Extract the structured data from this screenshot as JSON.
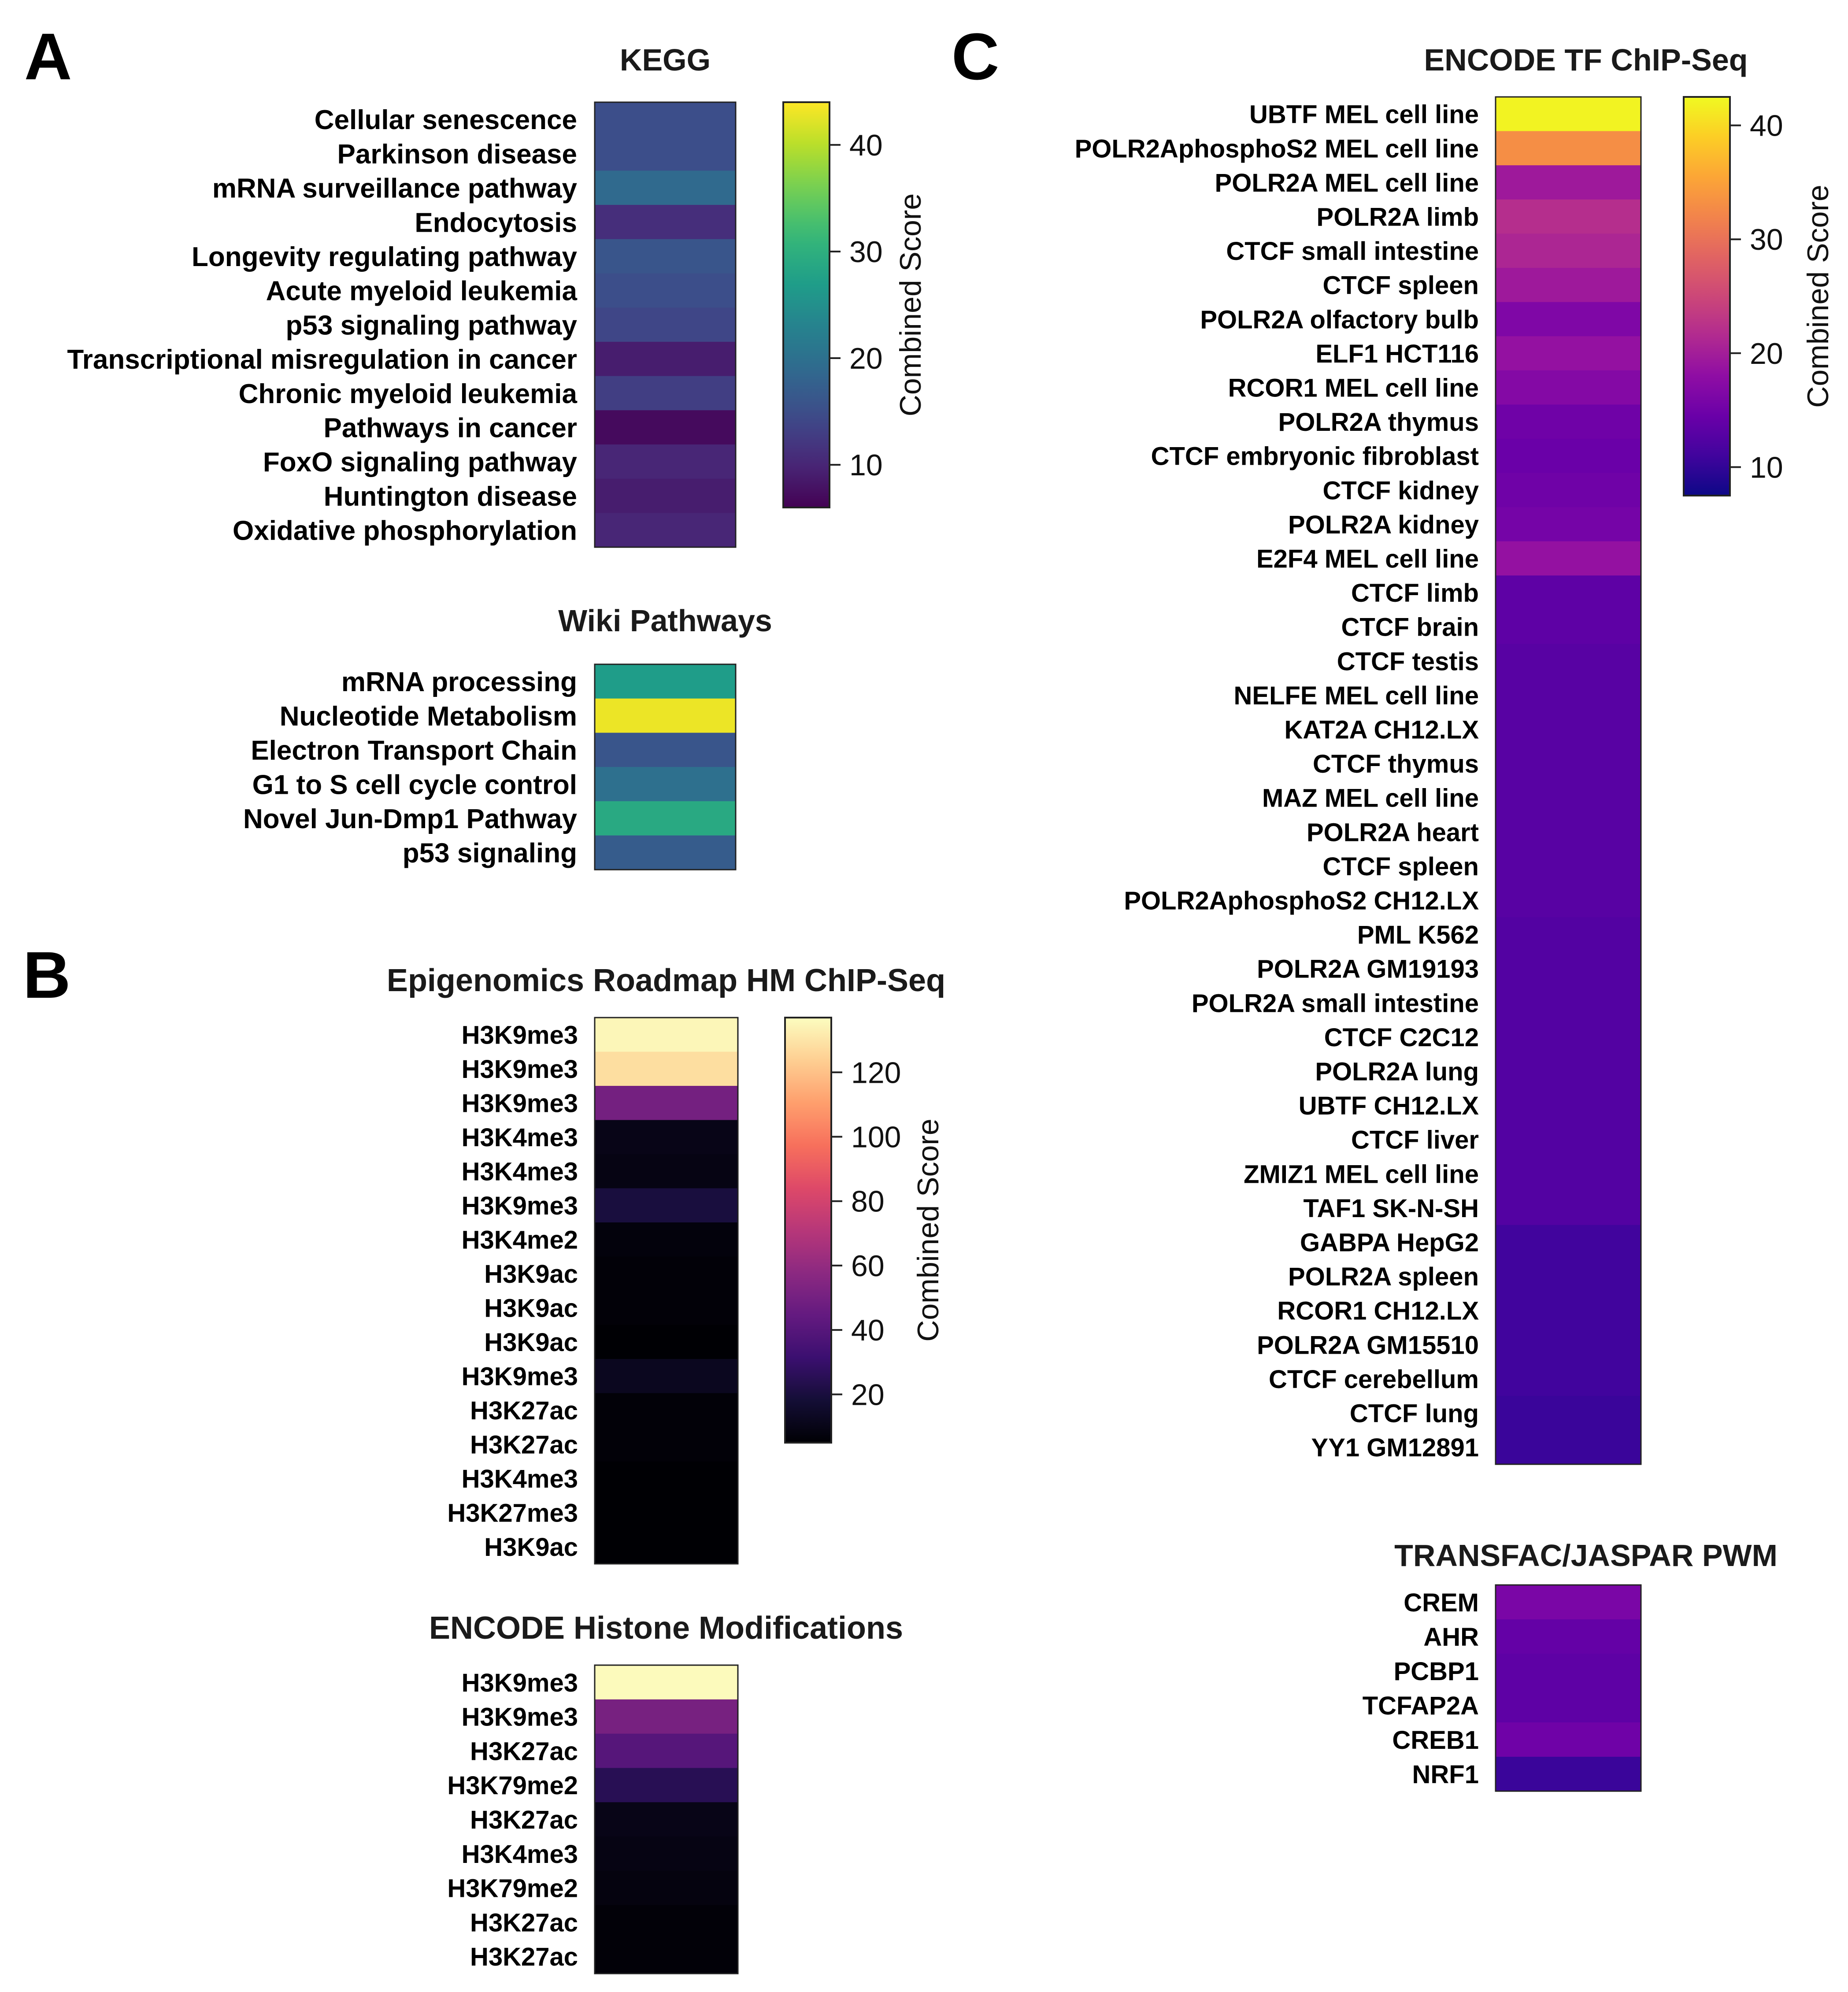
{
  "panel_labels": [
    "A",
    "B",
    "C"
  ],
  "chart_data": [
    {
      "type": "heatmap",
      "title": "KEGG",
      "colormap": "viridis",
      "colorbar": {
        "label": "Combined Score",
        "range": [
          6,
          44
        ],
        "ticks": [
          10,
          20,
          30,
          40
        ]
      },
      "categories": [
        "Cellular senescence",
        "Parkinson disease",
        "mRNA surveillance pathway",
        "Endocytosis",
        "Longevity regulating pathway",
        "Acute myeloid leukemia",
        "p53 signaling pathway",
        "Transcriptional misregulation in cancer",
        "Chronic myeloid leukemia",
        "Pathways in cancer",
        "FoxO signaling pathway",
        "Huntington disease",
        "Oxidative phosphorylation"
      ],
      "values": [
        15,
        15,
        19,
        11,
        16,
        15,
        14,
        9,
        13,
        7,
        10,
        9,
        10
      ]
    },
    {
      "type": "heatmap",
      "title": "Wiki Pathways",
      "colormap": "viridis",
      "colorbar_shared_with": "KEGG",
      "range": [
        6,
        44
      ],
      "categories": [
        "mRNA processing",
        "Nucleotide Metabolism",
        "Electron Transport Chain",
        "G1 to S cell cycle control",
        "Novel Jun-Dmp1 Pathway",
        "p53 signaling"
      ],
      "values": [
        27,
        43,
        16,
        20,
        29,
        17
      ]
    },
    {
      "type": "heatmap",
      "title": "Epigenomics Roadmap HM ChIP-Seq",
      "colormap": "magma",
      "colorbar": {
        "label": "Combined Score",
        "range": [
          5,
          137
        ],
        "ticks": [
          20,
          40,
          60,
          80,
          100,
          120
        ]
      },
      "categories": [
        "H3K9me3",
        "H3K9me3",
        "H3K9me3",
        "H3K4me3",
        "H3K4me3",
        "H3K9me3",
        "H3K4me2",
        "H3K9ac",
        "H3K9ac",
        "H3K9ac",
        "H3K9me3",
        "H3K27ac",
        "H3K27ac",
        "H3K4me3",
        "H3K27me3",
        "H3K9ac"
      ],
      "values": [
        135,
        128,
        50,
        10,
        9,
        20,
        7,
        6,
        6,
        5,
        12,
        6,
        6,
        5,
        5,
        5
      ]
    },
    {
      "type": "heatmap",
      "title": "ENCODE Histone Modifications",
      "colormap": "magma",
      "colorbar_shared_with": "Epigenomics Roadmap HM ChIP-Seq",
      "range": [
        5,
        137
      ],
      "categories": [
        "H3K9me3",
        "H3K9me3",
        "H3K27ac",
        "H3K79me2",
        "H3K27ac",
        "H3K4me3",
        "H3K79me2",
        "H3K27ac",
        "H3K27ac"
      ],
      "values": [
        136,
        51,
        40,
        25,
        10,
        9,
        8,
        6,
        6
      ]
    },
    {
      "type": "heatmap",
      "title": "ENCODE TF ChIP-Seq",
      "colormap": "plasma",
      "colorbar": {
        "label": "Combined Score",
        "range": [
          7.5,
          42.5
        ],
        "ticks": [
          10,
          20,
          30,
          40
        ]
      },
      "categories": [
        "UBTF MEL cell line",
        "POLR2AphosphoS2 MEL cell line",
        "POLR2A MEL cell line",
        "POLR2A limb",
        "CTCF small intestine",
        "CTCF spleen",
        "POLR2A olfactory bulb",
        "ELF1 HCT116",
        "RCOR1 MEL cell line",
        "POLR2A thymus",
        "CTCF embryonic fibroblast",
        "CTCF kidney",
        "POLR2A kidney",
        "E2F4 MEL cell line",
        "CTCF limb",
        "CTCF brain",
        "CTCF testis",
        "NELFE MEL cell line",
        "KAT2A CH12.LX",
        "CTCF thymus",
        "MAZ MEL cell line",
        "POLR2A heart",
        "CTCF spleen",
        "POLR2AphosphoS2 CH12.LX",
        "PML K562",
        "POLR2A GM19193",
        "POLR2A small intestine",
        "CTCF C2C12",
        "POLR2A lung",
        "UBTF CH12.LX",
        "CTCF liver",
        "ZMIZ1 MEL cell line",
        "TAF1 SK-N-SH",
        "GABPA HepG2",
        "POLR2A spleen",
        "RCOR1 CH12.LX",
        "POLR2A GM15510",
        "CTCF cerebellum",
        "CTCF lung",
        "YY1 GM12891"
      ],
      "values": [
        42,
        33,
        19.5,
        22,
        21,
        19.5,
        16.5,
        18.5,
        17,
        15,
        14.5,
        15,
        15.5,
        18.5,
        13.5,
        13.5,
        13,
        13,
        13,
        13,
        13,
        13,
        13,
        13,
        12.5,
        12.5,
        12.5,
        12.5,
        12.5,
        12.5,
        12.5,
        12.5,
        12.5,
        11,
        11,
        11,
        11,
        11,
        10.5,
        10.5
      ]
    },
    {
      "type": "heatmap",
      "title": "TRANSFAC/JASPAR PWM",
      "colormap": "plasma",
      "colorbar_shared_with": "ENCODE TF ChIP-Seq",
      "range": [
        7.5,
        42.5
      ],
      "categories": [
        "CREM",
        "AHR",
        "PCBP1",
        "TCFAP2A",
        "CREB1",
        "NRF1"
      ],
      "values": [
        16,
        14,
        13.5,
        13.5,
        15,
        10.5
      ]
    }
  ]
}
